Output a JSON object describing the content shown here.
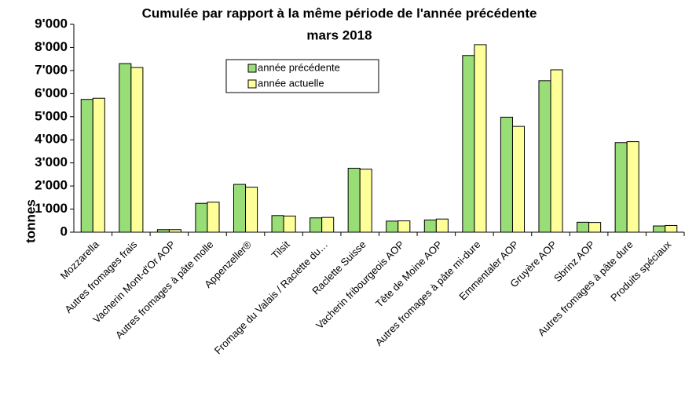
{
  "chart_data": {
    "type": "bar",
    "title": "Cumulée par rapport à la même période de l'année précédente",
    "subtitle": "mars 2018",
    "y_label": "tonnes",
    "categories": [
      "Mozzarella",
      "Autres fromages frais",
      "Vacherin Mont-d'Or AOP",
      "Autres fromages à pâte molle",
      "Appenzeller®",
      "Tilsit",
      "Fromage du Valais / Raclette du…",
      "Raclette Suisse",
      "Vacherin fribourgeois AOP",
      "Tête de Moine AOP",
      "Autres fromages à pâte mi-dure",
      "Emmentaler AOP",
      "Gruyère AOP",
      "Sbrinz AOP",
      "Autres fromages à pâte dure",
      "Produits spéciaux"
    ],
    "series": [
      {
        "name": "année précédente",
        "color": "#99dd77",
        "values": [
          5750,
          7300,
          110,
          1250,
          2070,
          720,
          620,
          2770,
          480,
          530,
          7650,
          4980,
          6560,
          430,
          3880,
          270
        ]
      },
      {
        "name": "année actuelle",
        "color": "#ffff99",
        "values": [
          5800,
          7130,
          110,
          1300,
          1950,
          700,
          640,
          2730,
          490,
          570,
          8120,
          4580,
          7030,
          420,
          3920,
          290
        ]
      }
    ],
    "ylim": [
      0,
      9000
    ],
    "yticks": [
      0,
      {
        "value": 1000,
        "label": "1'000"
      },
      {
        "value": 2000,
        "label": "2'000"
      },
      {
        "value": 3000,
        "label": "3'000"
      },
      {
        "value": 4000,
        "label": "4'000"
      },
      {
        "value": 5000,
        "label": "5'000"
      },
      {
        "value": 6000,
        "label": "6'000"
      },
      {
        "value": 7000,
        "label": "7'000"
      },
      {
        "value": 8000,
        "label": "8'000"
      },
      {
        "value": 9000,
        "label": "9'000"
      }
    ]
  }
}
